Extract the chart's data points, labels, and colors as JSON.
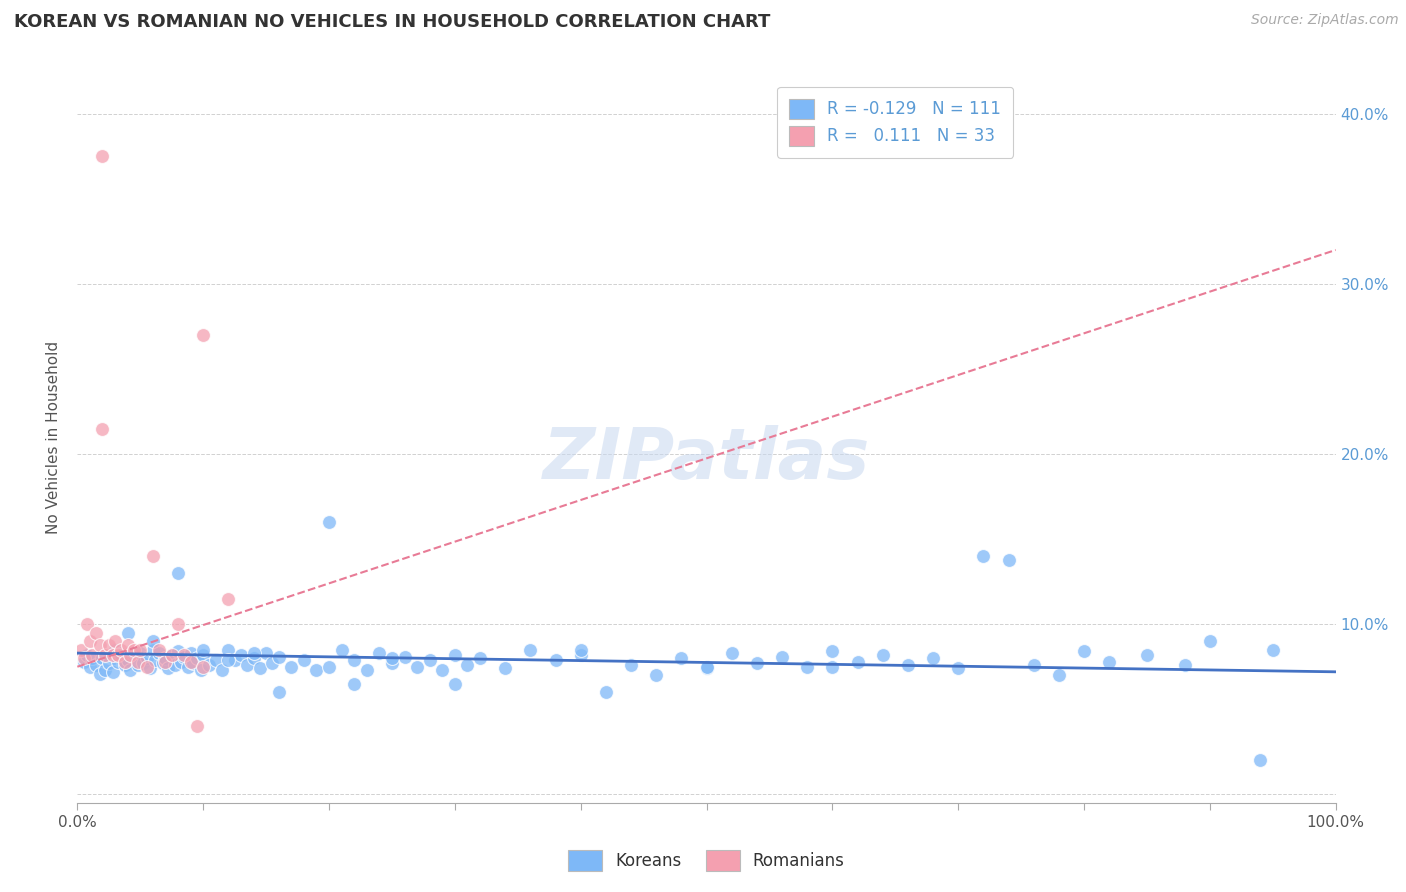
{
  "title": "KOREAN VS ROMANIAN NO VEHICLES IN HOUSEHOLD CORRELATION CHART",
  "source": "Source: ZipAtlas.com",
  "ylabel": "No Vehicles in Household",
  "xlim": [
    0.0,
    1.0
  ],
  "ylim": [
    -0.005,
    0.425
  ],
  "yticks": [
    0.0,
    0.1,
    0.2,
    0.3,
    0.4
  ],
  "ytick_labels": [
    "",
    "10.0%",
    "20.0%",
    "30.0%",
    "40.0%"
  ],
  "xticks": [
    0.0,
    0.1,
    0.2,
    0.3,
    0.4,
    0.5,
    0.6,
    0.7,
    0.8,
    0.9,
    1.0
  ],
  "xtick_labels": [
    "0.0%",
    "",
    "",
    "",
    "",
    "",
    "",
    "",
    "",
    "",
    "100.0%"
  ],
  "korean_color": "#7EB8F7",
  "romanian_color": "#F4A0B0",
  "korean_line_color": "#4472C4",
  "romanian_line_color": "#E87B96",
  "watermark_text": "ZIPatlas",
  "legend_korean_label": "R = -0.129   N = 111",
  "legend_romanian_label": "R =   0.111   N = 33",
  "bottom_legend_korean": "Koreans",
  "bottom_legend_romanian": "Romanians",
  "korean_scatter_x": [
    0.005,
    0.008,
    0.01,
    0.012,
    0.015,
    0.018,
    0.02,
    0.022,
    0.025,
    0.028,
    0.03,
    0.032,
    0.035,
    0.038,
    0.04,
    0.042,
    0.045,
    0.048,
    0.05,
    0.052,
    0.055,
    0.058,
    0.06,
    0.062,
    0.065,
    0.068,
    0.07,
    0.072,
    0.075,
    0.078,
    0.08,
    0.082,
    0.085,
    0.088,
    0.09,
    0.092,
    0.095,
    0.098,
    0.1,
    0.105,
    0.11,
    0.115,
    0.12,
    0.125,
    0.13,
    0.135,
    0.14,
    0.145,
    0.15,
    0.155,
    0.16,
    0.17,
    0.18,
    0.19,
    0.2,
    0.21,
    0.22,
    0.23,
    0.24,
    0.25,
    0.26,
    0.27,
    0.28,
    0.29,
    0.3,
    0.31,
    0.32,
    0.34,
    0.36,
    0.38,
    0.4,
    0.42,
    0.44,
    0.46,
    0.48,
    0.5,
    0.52,
    0.54,
    0.56,
    0.58,
    0.6,
    0.62,
    0.64,
    0.66,
    0.68,
    0.7,
    0.72,
    0.74,
    0.76,
    0.78,
    0.8,
    0.82,
    0.85,
    0.88,
    0.9,
    0.04,
    0.06,
    0.08,
    0.1,
    0.12,
    0.14,
    0.16,
    0.2,
    0.22,
    0.25,
    0.3,
    0.4,
    0.5,
    0.6,
    0.94,
    0.95
  ],
  "korean_scatter_y": [
    0.078,
    0.082,
    0.075,
    0.08,
    0.076,
    0.071,
    0.08,
    0.073,
    0.077,
    0.072,
    0.085,
    0.078,
    0.082,
    0.076,
    0.079,
    0.073,
    0.082,
    0.076,
    0.083,
    0.077,
    0.08,
    0.074,
    0.085,
    0.079,
    0.083,
    0.077,
    0.08,
    0.074,
    0.082,
    0.076,
    0.084,
    0.078,
    0.081,
    0.075,
    0.083,
    0.077,
    0.08,
    0.073,
    0.082,
    0.076,
    0.079,
    0.073,
    0.085,
    0.079,
    0.082,
    0.076,
    0.08,
    0.074,
    0.083,
    0.077,
    0.081,
    0.075,
    0.079,
    0.073,
    0.16,
    0.085,
    0.079,
    0.073,
    0.083,
    0.077,
    0.081,
    0.075,
    0.079,
    0.073,
    0.082,
    0.076,
    0.08,
    0.074,
    0.085,
    0.079,
    0.082,
    0.06,
    0.076,
    0.07,
    0.08,
    0.074,
    0.083,
    0.077,
    0.081,
    0.075,
    0.084,
    0.078,
    0.082,
    0.076,
    0.08,
    0.074,
    0.14,
    0.138,
    0.076,
    0.07,
    0.084,
    0.078,
    0.082,
    0.076,
    0.09,
    0.095,
    0.09,
    0.13,
    0.085,
    0.079,
    0.083,
    0.06,
    0.075,
    0.065,
    0.08,
    0.065,
    0.085,
    0.075,
    0.075,
    0.02,
    0.085
  ],
  "romanian_scatter_x": [
    0.003,
    0.005,
    0.008,
    0.01,
    0.012,
    0.015,
    0.018,
    0.02,
    0.022,
    0.025,
    0.028,
    0.03,
    0.032,
    0.035,
    0.038,
    0.04,
    0.042,
    0.045,
    0.048,
    0.05,
    0.055,
    0.06,
    0.065,
    0.07,
    0.075,
    0.08,
    0.085,
    0.09,
    0.095,
    0.1,
    0.02,
    0.1,
    0.12
  ],
  "romanian_scatter_y": [
    0.085,
    0.08,
    0.1,
    0.09,
    0.082,
    0.095,
    0.088,
    0.215,
    0.082,
    0.088,
    0.082,
    0.09,
    0.082,
    0.085,
    0.078,
    0.088,
    0.082,
    0.085,
    0.078,
    0.085,
    0.075,
    0.14,
    0.085,
    0.078,
    0.082,
    0.1,
    0.082,
    0.078,
    0.04,
    0.075,
    0.375,
    0.27,
    0.115
  ],
  "korean_trend_x0": 0.0,
  "korean_trend_x1": 1.0,
  "korean_trend_y0": 0.083,
  "korean_trend_y1": 0.072,
  "romanian_trend_x0": 0.0,
  "romanian_trend_x1": 1.0,
  "romanian_trend_y0": 0.075,
  "romanian_trend_y1": 0.32
}
